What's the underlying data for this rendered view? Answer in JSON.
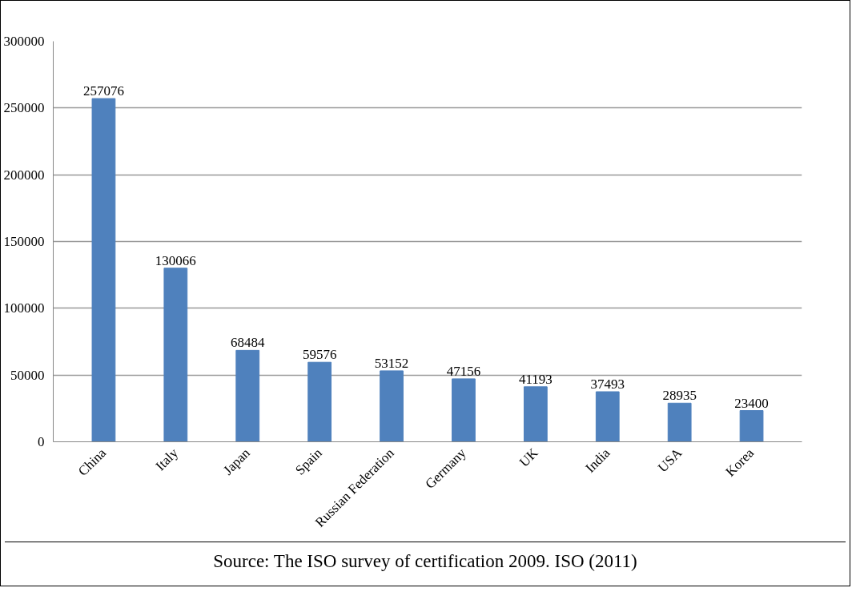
{
  "chart_data": {
    "type": "bar",
    "categories": [
      "China",
      "Italy",
      "Japan",
      "Spain",
      "Russian Federation",
      "Germany",
      "UK",
      "India",
      "USA",
      "Korea"
    ],
    "values": [
      257076,
      130066,
      68484,
      59576,
      53152,
      47156,
      41193,
      37493,
      28935,
      23400
    ],
    "color": "#4f81bd",
    "ylim": [
      0,
      300000
    ],
    "yticks": [
      0,
      50000,
      100000,
      150000,
      200000,
      250000,
      300000
    ],
    "grid": "y",
    "data_labels": true,
    "annotations": [
      "Source: The ISO survey of certification 2009. ISO (2011)"
    ]
  }
}
